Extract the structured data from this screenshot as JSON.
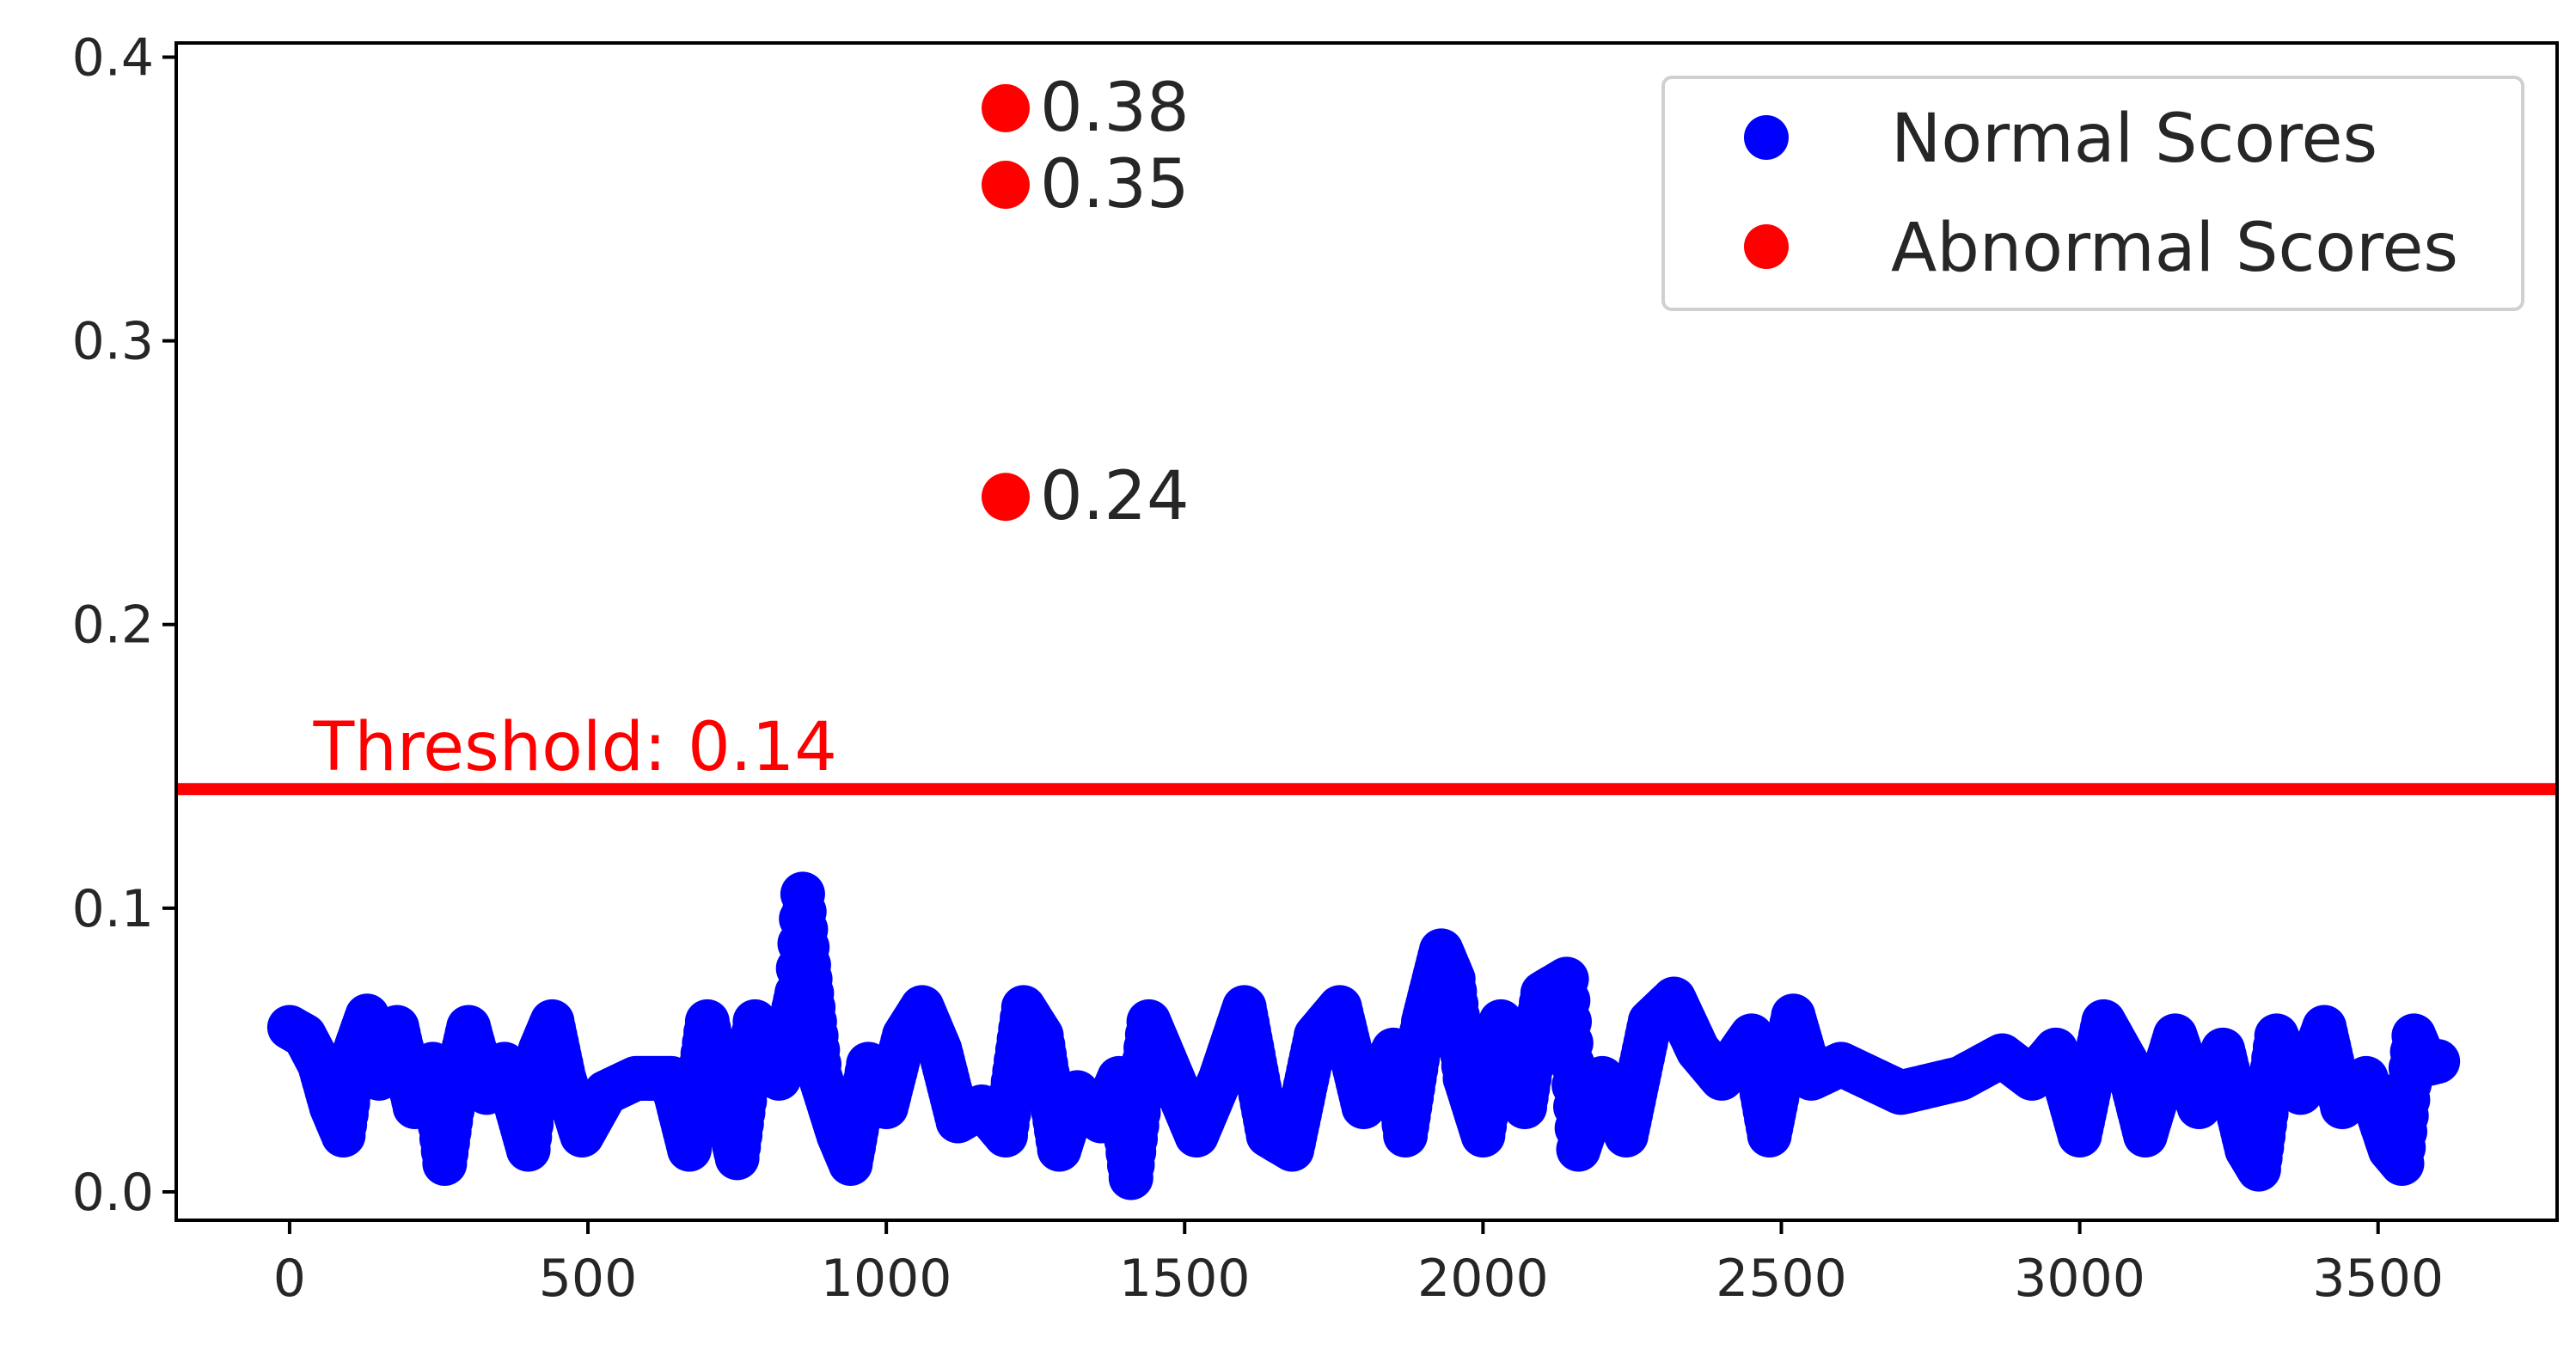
{
  "chart_data": {
    "type": "scatter",
    "title": "",
    "xlabel": "",
    "ylabel": "",
    "xlim": [
      -190,
      3800
    ],
    "ylim": [
      -0.01,
      0.405
    ],
    "xticks": [
      0,
      500,
      1000,
      1500,
      2000,
      2500,
      3000,
      3500
    ],
    "xtick_labels": [
      "0",
      "500",
      "1000",
      "1500",
      "2000",
      "2500",
      "3000",
      "3500"
    ],
    "yticks": [
      0.0,
      0.1,
      0.2,
      0.3,
      0.4
    ],
    "ytick_labels": [
      "0.0",
      "0.1",
      "0.2",
      "0.3",
      "0.4"
    ],
    "grid": false,
    "legend_position": "top-right",
    "threshold": {
      "value": 0.142,
      "label": "Threshold: 0.14",
      "color": "#ff0000"
    },
    "series": [
      {
        "name": "Normal Scores",
        "color": "#0000ff",
        "x_start": 0,
        "x_end": 3600,
        "trace_points": [
          [
            0,
            0.058
          ],
          [
            25,
            0.055
          ],
          [
            50,
            0.045
          ],
          [
            70,
            0.03
          ],
          [
            90,
            0.02
          ],
          [
            110,
            0.05
          ],
          [
            130,
            0.062
          ],
          [
            150,
            0.04
          ],
          [
            180,
            0.058
          ],
          [
            210,
            0.03
          ],
          [
            240,
            0.045
          ],
          [
            260,
            0.01
          ],
          [
            280,
            0.04
          ],
          [
            300,
            0.058
          ],
          [
            330,
            0.035
          ],
          [
            360,
            0.045
          ],
          [
            380,
            0.03
          ],
          [
            400,
            0.015
          ],
          [
            420,
            0.05
          ],
          [
            440,
            0.06
          ],
          [
            460,
            0.04
          ],
          [
            490,
            0.02
          ],
          [
            530,
            0.035
          ],
          [
            580,
            0.04
          ],
          [
            640,
            0.04
          ],
          [
            670,
            0.015
          ],
          [
            700,
            0.06
          ],
          [
            730,
            0.03
          ],
          [
            750,
            0.012
          ],
          [
            780,
            0.06
          ],
          [
            820,
            0.04
          ],
          [
            850,
            0.07
          ],
          [
            860,
            0.105
          ],
          [
            870,
            0.08
          ],
          [
            890,
            0.04
          ],
          [
            920,
            0.02
          ],
          [
            940,
            0.01
          ],
          [
            970,
            0.045
          ],
          [
            1000,
            0.03
          ],
          [
            1030,
            0.055
          ],
          [
            1060,
            0.065
          ],
          [
            1090,
            0.05
          ],
          [
            1120,
            0.025
          ],
          [
            1160,
            0.03
          ],
          [
            1200,
            0.02
          ],
          [
            1230,
            0.065
          ],
          [
            1260,
            0.055
          ],
          [
            1290,
            0.015
          ],
          [
            1320,
            0.035
          ],
          [
            1360,
            0.025
          ],
          [
            1390,
            0.04
          ],
          [
            1410,
            0.005
          ],
          [
            1440,
            0.06
          ],
          [
            1470,
            0.045
          ],
          [
            1520,
            0.02
          ],
          [
            1560,
            0.04
          ],
          [
            1600,
            0.065
          ],
          [
            1640,
            0.02
          ],
          [
            1680,
            0.015
          ],
          [
            1720,
            0.055
          ],
          [
            1760,
            0.065
          ],
          [
            1800,
            0.03
          ],
          [
            1850,
            0.05
          ],
          [
            1870,
            0.02
          ],
          [
            1900,
            0.06
          ],
          [
            1930,
            0.085
          ],
          [
            1950,
            0.075
          ],
          [
            1970,
            0.04
          ],
          [
            2000,
            0.02
          ],
          [
            2030,
            0.06
          ],
          [
            2070,
            0.03
          ],
          [
            2100,
            0.07
          ],
          [
            2140,
            0.075
          ],
          [
            2160,
            0.015
          ],
          [
            2200,
            0.04
          ],
          [
            2240,
            0.02
          ],
          [
            2280,
            0.06
          ],
          [
            2320,
            0.068
          ],
          [
            2360,
            0.05
          ],
          [
            2400,
            0.04
          ],
          [
            2450,
            0.055
          ],
          [
            2480,
            0.02
          ],
          [
            2520,
            0.062
          ],
          [
            2550,
            0.04
          ],
          [
            2600,
            0.045
          ],
          [
            2700,
            0.035
          ],
          [
            2800,
            0.04
          ],
          [
            2870,
            0.048
          ],
          [
            2920,
            0.04
          ],
          [
            2960,
            0.05
          ],
          [
            3000,
            0.02
          ],
          [
            3040,
            0.06
          ],
          [
            3080,
            0.045
          ],
          [
            3110,
            0.02
          ],
          [
            3160,
            0.055
          ],
          [
            3200,
            0.03
          ],
          [
            3240,
            0.05
          ],
          [
            3280,
            0.015
          ],
          [
            3300,
            0.008
          ],
          [
            3330,
            0.055
          ],
          [
            3370,
            0.035
          ],
          [
            3410,
            0.058
          ],
          [
            3440,
            0.03
          ],
          [
            3480,
            0.04
          ],
          [
            3520,
            0.015
          ],
          [
            3540,
            0.01
          ],
          [
            3560,
            0.055
          ],
          [
            3580,
            0.045
          ],
          [
            3600,
            0.046
          ]
        ]
      },
      {
        "name": "Abnormal Scores",
        "color": "#ff0000",
        "points": [
          {
            "x": 1200,
            "y": 0.382,
            "label": "0.38"
          },
          {
            "x": 1200,
            "y": 0.355,
            "label": "0.35"
          },
          {
            "x": 1200,
            "y": 0.245,
            "label": "0.24"
          }
        ]
      }
    ]
  }
}
